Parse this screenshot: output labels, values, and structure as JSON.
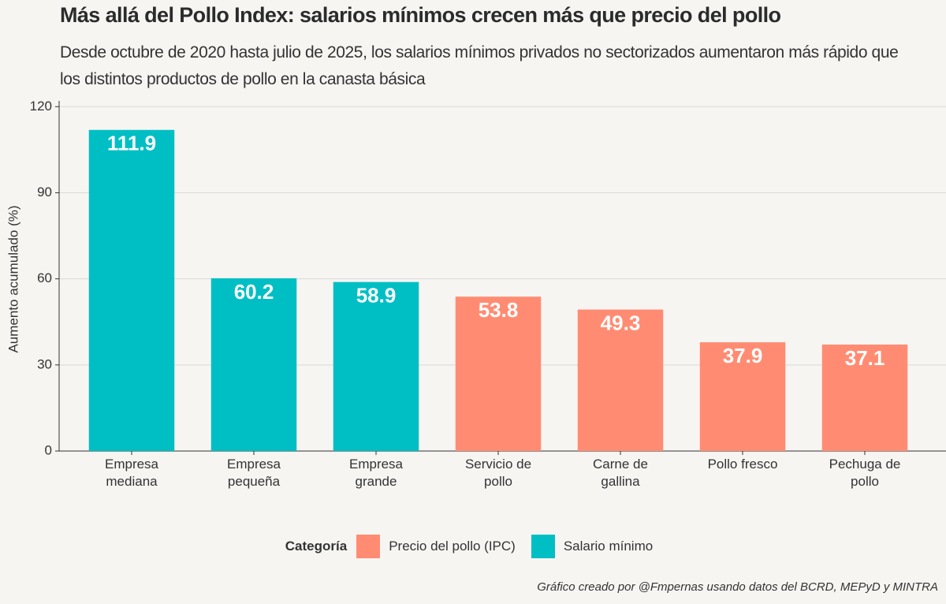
{
  "chart_data": {
    "type": "bar",
    "title": "Más allá del Pollo Index: salarios mínimos crecen más que precio del pollo",
    "subtitle": "Desde octubre de 2020 hasta julio de 2025, los salarios mínimos privados no sectorizados aumentaron más rápido que los distintos productos de pollo en la canasta básica",
    "y_label": "Aumento acumulado (%)",
    "categories": [
      "Empresa mediana",
      "Empresa pequeña",
      "Empresa grande",
      "Servicio de pollo",
      "Carne de gallina",
      "Pollo fresco",
      "Pechuga de pollo"
    ],
    "series": [
      {
        "name": "Precio del pollo (IPC)",
        "color": "#ff8c72",
        "values": [
          null,
          null,
          null,
          53.8,
          49.3,
          37.9,
          37.1
        ]
      },
      {
        "name": "Salario mínimo",
        "color": "#00bfc4",
        "values": [
          111.9,
          60.2,
          58.9,
          null,
          null,
          null,
          null
        ]
      }
    ],
    "legend_title": "Categoría",
    "ylim": [
      0,
      122
    ],
    "yticks": [
      0,
      30,
      60,
      90,
      120
    ],
    "grid": true,
    "caption": "Gráfico creado por @Fmpernas usando datos del BCRD, MEPyD y MINTRA"
  }
}
